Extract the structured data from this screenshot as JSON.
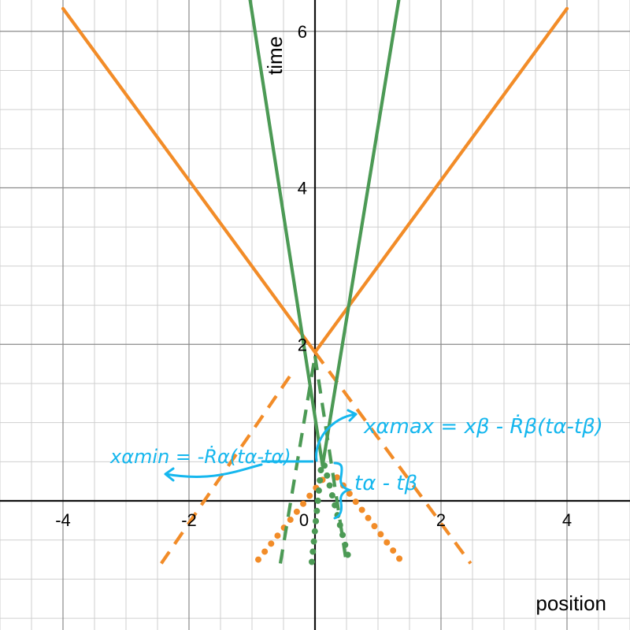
{
  "chart_data": {
    "type": "line",
    "xlabel": "position",
    "ylabel": "time",
    "xlim": [
      -5,
      5
    ],
    "ylim": [
      -1.65,
      6.4
    ],
    "x_ticks": [
      -4,
      -2,
      0,
      2,
      4
    ],
    "y_ticks": [
      2,
      4,
      6
    ],
    "x_tick_labels": [
      "-4",
      "-2",
      "0",
      "2",
      "4"
    ],
    "y_tick_labels": [
      "2",
      "4",
      "6"
    ],
    "grid": true,
    "minor_grid": true,
    "minor_step": 0.5,
    "colors": {
      "orange": "#f28c28",
      "green": "#4c9a55",
      "annotation": "#16b7ee"
    },
    "series": [
      {
        "color": "#f28c28",
        "style": "solid",
        "points": [
          [
            -4.0,
            6.29
          ],
          [
            0.0,
            1.9
          ]
        ]
      },
      {
        "color": "#f28c28",
        "style": "solid",
        "points": [
          [
            0.0,
            1.9
          ],
          [
            4.0,
            6.29
          ]
        ]
      },
      {
        "color": "#f28c28",
        "style": "dashed",
        "points": [
          [
            -2.44,
            -0.8
          ],
          [
            -0.35,
            1.65
          ]
        ]
      },
      {
        "color": "#f28c28",
        "style": "dashed",
        "points": [
          [
            0.0,
            1.9
          ],
          [
            2.47,
            -0.8
          ]
        ]
      },
      {
        "color": "#f28c28",
        "style": "dotted",
        "points": [
          [
            -0.9,
            -0.75
          ],
          [
            0.15,
            0.3
          ]
        ]
      },
      {
        "color": "#f28c28",
        "style": "dotted",
        "points": [
          [
            0.35,
            0.3
          ],
          [
            1.35,
            -0.75
          ]
        ]
      },
      {
        "color": "#4c9a55",
        "style": "solid",
        "points": [
          [
            -1.03,
            6.4
          ],
          [
            0.12,
            0.45
          ]
        ]
      },
      {
        "color": "#4c9a55",
        "style": "solid",
        "points": [
          [
            0.12,
            0.45
          ],
          [
            1.33,
            6.4
          ]
        ]
      },
      {
        "color": "#4c9a55",
        "style": "dashed",
        "points": [
          [
            -0.55,
            -0.8
          ],
          [
            0.0,
            1.85
          ]
        ]
      },
      {
        "color": "#4c9a55",
        "style": "dashed",
        "points": [
          [
            0.0,
            1.85
          ],
          [
            0.5,
            -0.8
          ]
        ]
      },
      {
        "color": "#4c9a55",
        "style": "dotted",
        "points": [
          [
            -0.05,
            -0.78
          ],
          [
            0.1,
            0.45
          ]
        ]
      },
      {
        "color": "#4c9a55",
        "style": "dotted",
        "points": [
          [
            0.15,
            0.45
          ],
          [
            0.55,
            -0.78
          ]
        ]
      }
    ],
    "annotations": {
      "left_label": "xαmin = -Ṙα(tα-tα)",
      "right_label": "xαmax = xβ - Ṙβ(tα-tβ)",
      "brace_label": "tα - tβ"
    }
  }
}
